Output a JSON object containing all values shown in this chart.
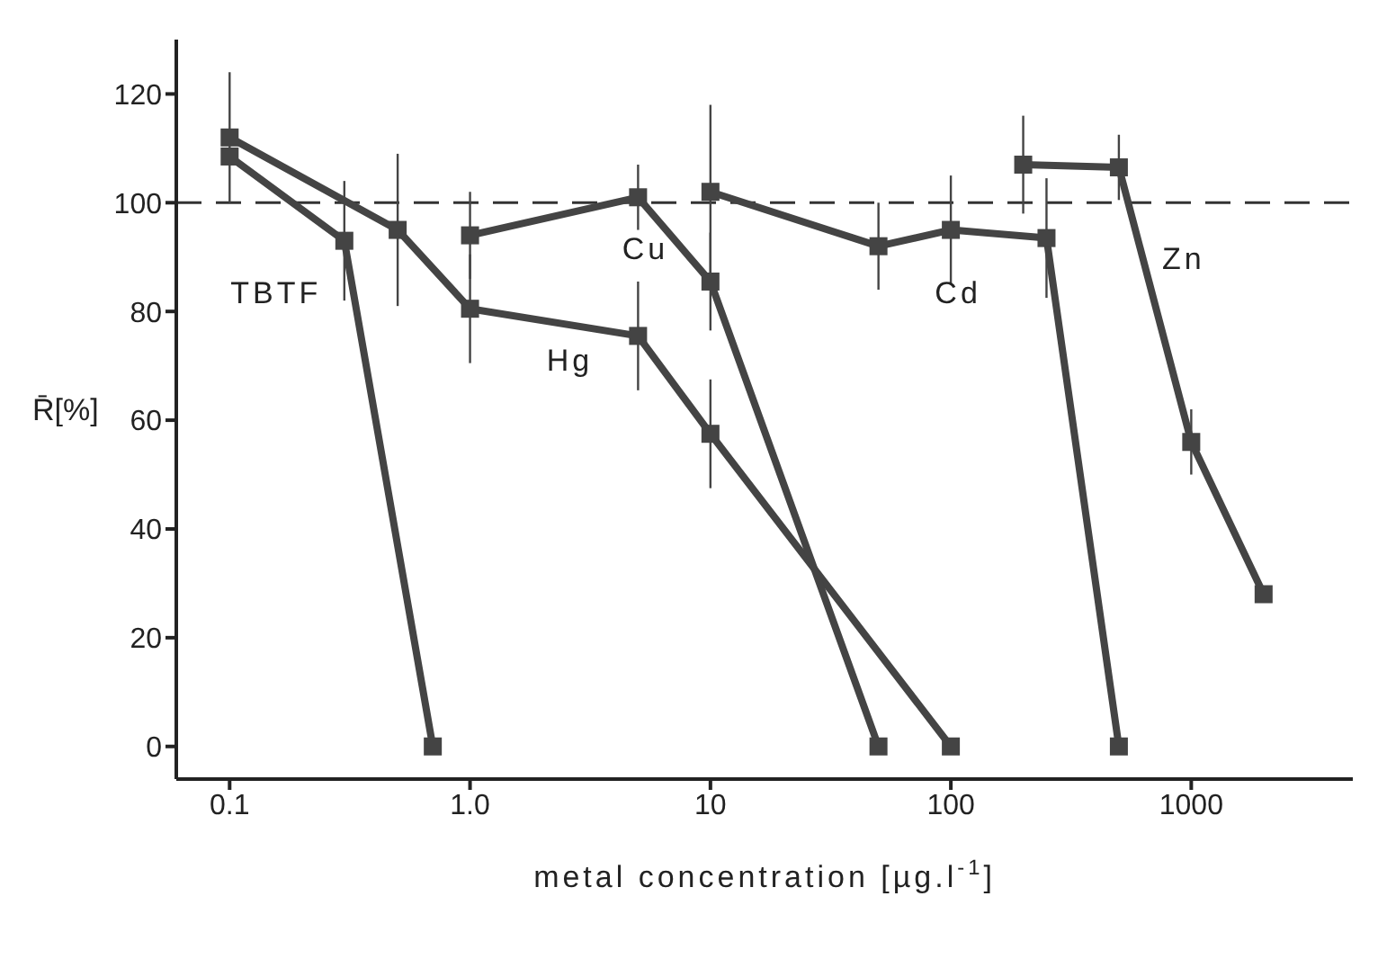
{
  "chart_data": {
    "type": "line",
    "xlabel": "metal concentration  [µg.l$^{-1}$]",
    "ylabel": "R̄[%]",
    "log": "x",
    "xlim": [
      0.06,
      4700
    ],
    "xticks": [
      0.1,
      {
        "value": 1,
        "label": "1.0"
      },
      10,
      100,
      1000
    ],
    "ylim": [
      -6,
      130
    ],
    "yticks": [
      0,
      20,
      40,
      60,
      80,
      100,
      120
    ],
    "grid": false,
    "legend": false,
    "marker": "square",
    "line_style": "solid",
    "series": [
      {
        "name": "TBTF",
        "color": "#444444",
        "x": [
          0.1,
          0.3,
          0.7
        ],
        "values": [
          108.5,
          93,
          0
        ],
        "errors": [
          null,
          11,
          null
        ]
      },
      {
        "name": "Hg",
        "color": "#444444",
        "x": [
          0.1,
          0.5,
          1,
          5,
          10,
          100
        ],
        "values": [
          112,
          95,
          80.5,
          75.5,
          57.5,
          0
        ],
        "errors": [
          12,
          14,
          10,
          10,
          10,
          null
        ]
      },
      {
        "name": "Cu",
        "color": "#444444",
        "x": [
          1,
          5,
          10,
          50
        ],
        "values": [
          94,
          101,
          85.5,
          0
        ],
        "errors": [
          8,
          6,
          9,
          null
        ]
      },
      {
        "name": "Cd",
        "color": "#444444",
        "x": [
          10,
          50,
          100,
          250,
          500
        ],
        "values": [
          102,
          92,
          95,
          93.5,
          0
        ],
        "errors": [
          16,
          8,
          10,
          11,
          null
        ]
      },
      {
        "name": "Zn",
        "color": "#444444",
        "x": [
          200,
          500,
          1000,
          2000
        ],
        "values": [
          107,
          106.5,
          56,
          28
        ],
        "errors": [
          9,
          6,
          6,
          null
        ]
      }
    ],
    "ref_lines": [
      {
        "axis": "y",
        "value": 100,
        "line_style": "dashed",
        "color": "#333333"
      }
    ]
  }
}
